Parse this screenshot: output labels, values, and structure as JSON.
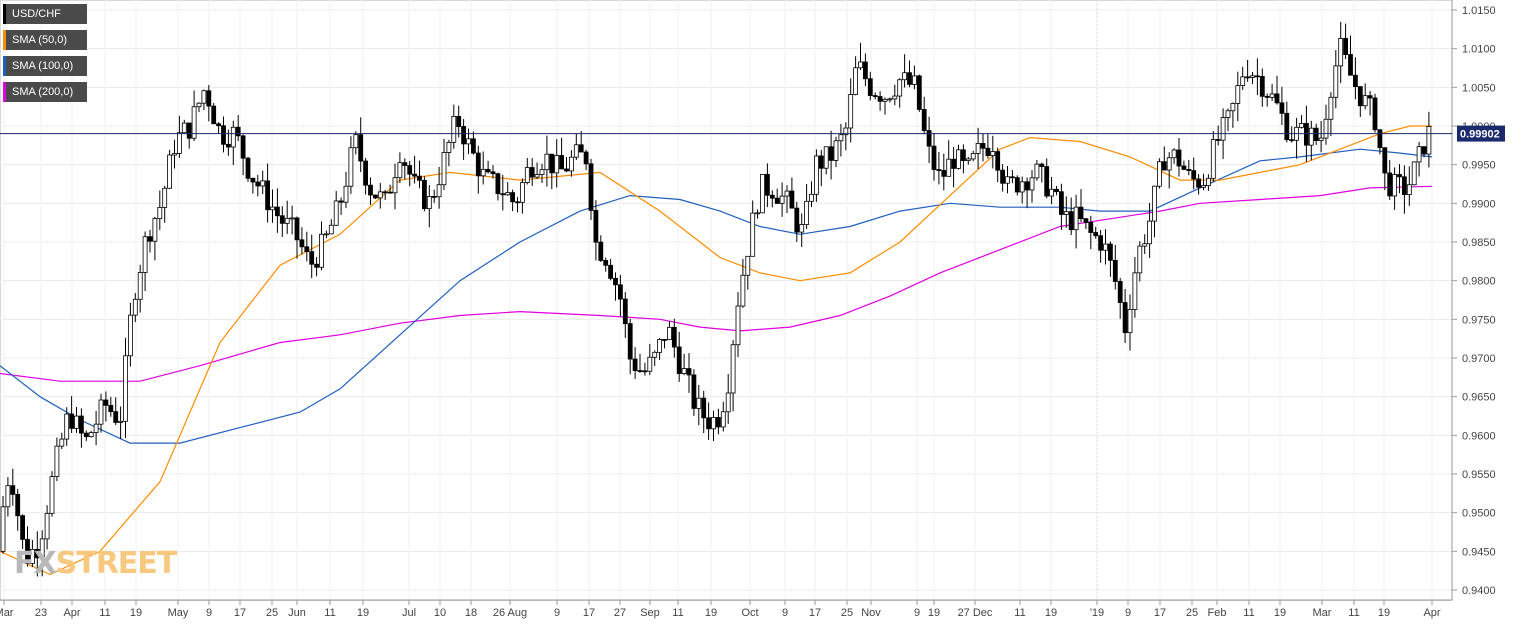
{
  "legend": [
    {
      "label": "USD/CHF",
      "color": "#000000"
    },
    {
      "label": "SMA (50,0)",
      "color": "#ff8c00"
    },
    {
      "label": "SMA (100,0)",
      "color": "#1f5fbf"
    },
    {
      "label": "SMA (200,0)",
      "color": "#e000e0"
    }
  ],
  "watermark": {
    "part1": "FX",
    "part2": "STREET"
  },
  "chart_data": {
    "type": "candlestick",
    "title": "",
    "symbol": "USD/CHF",
    "last_price": "0.99902",
    "last_price_value": 0.99902,
    "ylim": [
      0.939,
      1.016
    ],
    "y_ticks": [
      "1.0150",
      "1.0100",
      "1.0050",
      "1.0000",
      "0.9950",
      "0.9900",
      "0.9850",
      "0.9800",
      "0.9750",
      "0.9700",
      "0.9650",
      "0.9600",
      "0.9550",
      "0.9500",
      "0.9450",
      "0.9400"
    ],
    "x_tick_labels": [
      "Mar",
      "23",
      "Apr",
      "11",
      "19",
      "May",
      "9",
      "17",
      "25",
      "Jun",
      "11",
      "19",
      "Jul",
      "10",
      "18",
      "26 Aug",
      "9",
      "17",
      "27",
      "Sep",
      "11",
      "19",
      "Oct",
      "9",
      "17",
      "25",
      "Nov",
      "9",
      "19",
      "27 Dec",
      "11",
      "19",
      "'19",
      "9",
      "17",
      "25",
      "Feb",
      "11",
      "19",
      "Mar",
      "11",
      "19",
      "Apr"
    ],
    "grid": true,
    "colors": {
      "up": "#ffffff",
      "down": "#000000",
      "sma50": "#ff8c00",
      "sma100": "#1f5fbf",
      "sma200": "#e000e0",
      "last_line": "#1a2a6c"
    },
    "anchors": [
      [
        0,
        0.945
      ],
      [
        15,
        0.956
      ],
      [
        30,
        0.944
      ],
      [
        44,
        0.946
      ],
      [
        60,
        0.956
      ],
      [
        74,
        0.963
      ],
      [
        90,
        0.959
      ],
      [
        110,
        0.964
      ],
      [
        125,
        0.962
      ],
      [
        138,
        0.978
      ],
      [
        152,
        0.986
      ],
      [
        166,
        0.99
      ],
      [
        180,
        0.998
      ],
      [
        195,
        1.0
      ],
      [
        210,
        1.005
      ],
      [
        225,
        0.999
      ],
      [
        240,
        0.999
      ],
      [
        255,
        0.994
      ],
      [
        270,
        0.991
      ],
      [
        285,
        0.988
      ],
      [
        300,
        0.986
      ],
      [
        315,
        0.982
      ],
      [
        330,
        0.985
      ],
      [
        345,
        0.99
      ],
      [
        360,
        0.998
      ],
      [
        375,
        0.992
      ],
      [
        390,
        0.99
      ],
      [
        405,
        0.997
      ],
      [
        420,
        0.992
      ],
      [
        435,
        0.99
      ],
      [
        450,
        0.996
      ],
      [
        462,
        1.001
      ],
      [
        475,
        0.997
      ],
      [
        490,
        0.993
      ],
      [
        505,
        0.992
      ],
      [
        520,
        0.99
      ],
      [
        535,
        0.995
      ],
      [
        550,
        0.996
      ],
      [
        565,
        0.994
      ],
      [
        580,
        0.996
      ],
      [
        592,
        0.996
      ],
      [
        600,
        0.985
      ],
      [
        612,
        0.983
      ],
      [
        625,
        0.978
      ],
      [
        635,
        0.97
      ],
      [
        648,
        0.968
      ],
      [
        660,
        0.97
      ],
      [
        672,
        0.974
      ],
      [
        686,
        0.969
      ],
      [
        700,
        0.964
      ],
      [
        712,
        0.962
      ],
      [
        722,
        0.962
      ],
      [
        732,
        0.966
      ],
      [
        742,
        0.977
      ],
      [
        752,
        0.984
      ],
      [
        765,
        0.992
      ],
      [
        778,
        0.992
      ],
      [
        792,
        0.99
      ],
      [
        808,
        0.986
      ],
      [
        820,
        0.995
      ],
      [
        835,
        0.996
      ],
      [
        850,
        0.999
      ],
      [
        862,
        1.008
      ],
      [
        876,
        1.005
      ],
      [
        890,
        1.004
      ],
      [
        905,
        1.006
      ],
      [
        920,
        1.005
      ],
      [
        932,
        0.997
      ],
      [
        945,
        0.993
      ],
      [
        958,
        0.996
      ],
      [
        972,
        0.994
      ],
      [
        985,
        0.997
      ],
      [
        998,
        0.998
      ],
      [
        1012,
        0.992
      ],
      [
        1025,
        0.993
      ],
      [
        1040,
        0.994
      ],
      [
        1055,
        0.992
      ],
      [
        1068,
        0.988
      ],
      [
        1082,
        0.988
      ],
      [
        1095,
        0.986
      ],
      [
        1108,
        0.985
      ],
      [
        1120,
        0.98
      ],
      [
        1130,
        0.974
      ],
      [
        1142,
        0.983
      ],
      [
        1155,
        0.988
      ],
      [
        1168,
        0.996
      ],
      [
        1182,
        0.996
      ],
      [
        1195,
        0.993
      ],
      [
        1208,
        0.993
      ],
      [
        1222,
        0.998
      ],
      [
        1235,
        1.001
      ],
      [
        1250,
        1.008
      ],
      [
        1265,
        1.006
      ],
      [
        1280,
        1.003
      ],
      [
        1295,
        0.999
      ],
      [
        1310,
        0.999
      ],
      [
        1325,
        0.998
      ],
      [
        1335,
        1.005
      ],
      [
        1345,
        1.01
      ],
      [
        1357,
        1.006
      ],
      [
        1370,
        1.003
      ],
      [
        1380,
        1.001
      ],
      [
        1390,
        0.993
      ],
      [
        1400,
        0.992
      ],
      [
        1412,
        0.992
      ],
      [
        1422,
        0.995
      ],
      [
        1432,
        0.999
      ]
    ],
    "sma50": [
      [
        0,
        0.945
      ],
      [
        50,
        0.942
      ],
      [
        100,
        0.945
      ],
      [
        160,
        0.954
      ],
      [
        220,
        0.972
      ],
      [
        280,
        0.982
      ],
      [
        340,
        0.986
      ],
      [
        400,
        0.993
      ],
      [
        450,
        0.994
      ],
      [
        520,
        0.993
      ],
      [
        600,
        0.994
      ],
      [
        660,
        0.989
      ],
      [
        720,
        0.983
      ],
      [
        760,
        0.981
      ],
      [
        800,
        0.98
      ],
      [
        850,
        0.981
      ],
      [
        900,
        0.985
      ],
      [
        950,
        0.991
      ],
      [
        1000,
        0.997
      ],
      [
        1030,
        0.9985
      ],
      [
        1080,
        0.998
      ],
      [
        1130,
        0.996
      ],
      [
        1180,
        0.993
      ],
      [
        1220,
        0.993
      ],
      [
        1260,
        0.994
      ],
      [
        1300,
        0.995
      ],
      [
        1340,
        0.997
      ],
      [
        1380,
        0.999
      ],
      [
        1410,
        1.0
      ],
      [
        1432,
        1.0
      ]
    ],
    "sma100": [
      [
        0,
        0.969
      ],
      [
        40,
        0.965
      ],
      [
        80,
        0.962
      ],
      [
        130,
        0.959
      ],
      [
        180,
        0.959
      ],
      [
        240,
        0.961
      ],
      [
        300,
        0.963
      ],
      [
        340,
        0.966
      ],
      [
        400,
        0.973
      ],
      [
        460,
        0.98
      ],
      [
        520,
        0.985
      ],
      [
        580,
        0.989
      ],
      [
        630,
        0.991
      ],
      [
        680,
        0.9905
      ],
      [
        720,
        0.989
      ],
      [
        760,
        0.987
      ],
      [
        800,
        0.986
      ],
      [
        850,
        0.987
      ],
      [
        900,
        0.989
      ],
      [
        950,
        0.99
      ],
      [
        1000,
        0.9895
      ],
      [
        1060,
        0.9895
      ],
      [
        1100,
        0.989
      ],
      [
        1150,
        0.989
      ],
      [
        1200,
        0.992
      ],
      [
        1260,
        0.9955
      ],
      [
        1300,
        0.996
      ],
      [
        1360,
        0.997
      ],
      [
        1400,
        0.9965
      ],
      [
        1432,
        0.996
      ]
    ],
    "sma200": [
      [
        0,
        0.968
      ],
      [
        60,
        0.967
      ],
      [
        140,
        0.967
      ],
      [
        200,
        0.969
      ],
      [
        280,
        0.972
      ],
      [
        340,
        0.973
      ],
      [
        400,
        0.9745
      ],
      [
        460,
        0.9755
      ],
      [
        520,
        0.976
      ],
      [
        600,
        0.9755
      ],
      [
        660,
        0.975
      ],
      [
        700,
        0.974
      ],
      [
        740,
        0.9735
      ],
      [
        790,
        0.974
      ],
      [
        840,
        0.9755
      ],
      [
        890,
        0.978
      ],
      [
        940,
        0.981
      ],
      [
        1000,
        0.984
      ],
      [
        1060,
        0.987
      ],
      [
        1110,
        0.988
      ],
      [
        1160,
        0.989
      ],
      [
        1200,
        0.99
      ],
      [
        1260,
        0.9905
      ],
      [
        1320,
        0.991
      ],
      [
        1370,
        0.992
      ],
      [
        1432,
        0.9922
      ]
    ]
  }
}
